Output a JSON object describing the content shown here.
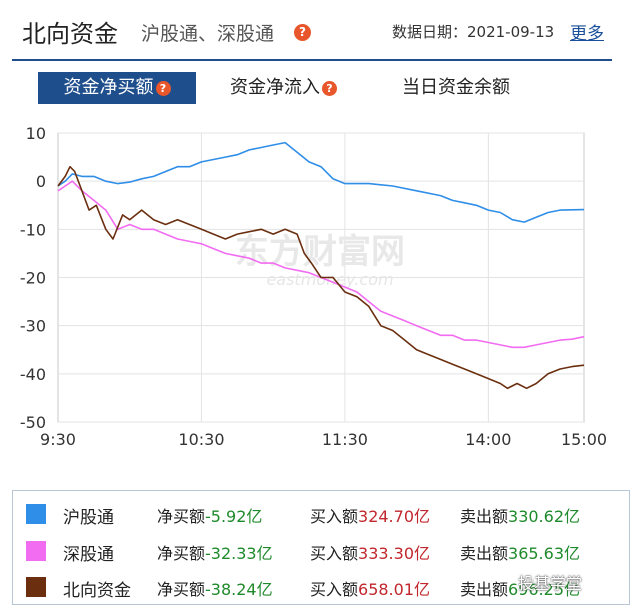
{
  "header": {
    "title": "北向资金",
    "subtitle": "沪股通、深股通",
    "date_label": "数据日期：2021-09-13",
    "more_link": "更多"
  },
  "tabs": [
    {
      "label": "资金净买额",
      "active": true
    },
    {
      "label": "资金净流入",
      "active": false
    },
    {
      "label": "当日资金余额",
      "active": false
    }
  ],
  "watermark": {
    "brand_cn": "东方财富网",
    "brand_en": "eastmoney.com",
    "corner": "投基学堂"
  },
  "legend": [
    {
      "name": "沪股通",
      "color": "#2f8ee8",
      "net_label": "净买额",
      "net_value": "-5.92亿",
      "buy_label": "买入额",
      "buy_value": "324.70亿",
      "sell_label": "卖出额",
      "sell_value": "330.62亿"
    },
    {
      "name": "深股通",
      "color": "#f26cf2",
      "net_label": "净买额",
      "net_value": "-32.33亿",
      "buy_label": "买入额",
      "buy_value": "333.30亿",
      "sell_label": "卖出额",
      "sell_value": "365.63亿"
    },
    {
      "name": "北向资金",
      "color": "#6b2f10",
      "net_label": "净买额",
      "net_value": "-38.24亿",
      "buy_label": "买入额",
      "buy_value": "658.01亿",
      "sell_label": "卖出额",
      "sell_value": "696.25亿"
    }
  ],
  "chart_data": {
    "type": "line",
    "ylim": [
      -50,
      10
    ],
    "yticks": [
      "10",
      "0",
      "-10",
      "-20",
      "-30",
      "-40",
      "-50"
    ],
    "xticks": [
      "9:30",
      "10:30",
      "11:30",
      "14:00",
      "15:00"
    ],
    "grid": true,
    "series": [
      {
        "name": "沪股通",
        "color": "#2f8ee8",
        "points": [
          [
            0,
            -1
          ],
          [
            3,
            0
          ],
          [
            6,
            1.5
          ],
          [
            10,
            1
          ],
          [
            15,
            1
          ],
          [
            20,
            0
          ],
          [
            25,
            -0.5
          ],
          [
            30,
            -0.2
          ],
          [
            35,
            0.5
          ],
          [
            40,
            1
          ],
          [
            45,
            2
          ],
          [
            50,
            3
          ],
          [
            55,
            3
          ],
          [
            60,
            4
          ],
          [
            65,
            4.5
          ],
          [
            70,
            5
          ],
          [
            75,
            5.5
          ],
          [
            80,
            6.5
          ],
          [
            85,
            7
          ],
          [
            90,
            7.5
          ],
          [
            95,
            8
          ],
          [
            100,
            6
          ],
          [
            105,
            4
          ],
          [
            110,
            3
          ],
          [
            115,
            0.5
          ],
          [
            120,
            -0.5
          ],
          [
            125,
            -0.5
          ],
          [
            130,
            -0.5
          ],
          [
            140,
            -1
          ],
          [
            150,
            -2
          ],
          [
            160,
            -3
          ],
          [
            165,
            -4
          ],
          [
            170,
            -4.5
          ],
          [
            175,
            -5
          ],
          [
            180,
            -6
          ],
          [
            185,
            -6.5
          ],
          [
            190,
            -8
          ],
          [
            195,
            -8.5
          ],
          [
            200,
            -7.5
          ],
          [
            205,
            -6.5
          ],
          [
            210,
            -6
          ],
          [
            220,
            -5.9
          ]
        ]
      },
      {
        "name": "深股通",
        "color": "#f26cf2",
        "points": [
          [
            0,
            -2
          ],
          [
            3,
            -1
          ],
          [
            6,
            0
          ],
          [
            10,
            -2
          ],
          [
            15,
            -4
          ],
          [
            20,
            -6
          ],
          [
            25,
            -10
          ],
          [
            30,
            -9
          ],
          [
            35,
            -10
          ],
          [
            40,
            -10
          ],
          [
            45,
            -11
          ],
          [
            50,
            -12
          ],
          [
            55,
            -12.5
          ],
          [
            60,
            -13
          ],
          [
            65,
            -14
          ],
          [
            70,
            -15
          ],
          [
            75,
            -15.5
          ],
          [
            80,
            -16
          ],
          [
            85,
            -17
          ],
          [
            90,
            -17
          ],
          [
            95,
            -18
          ],
          [
            100,
            -18.5
          ],
          [
            105,
            -19
          ],
          [
            110,
            -20
          ],
          [
            115,
            -21
          ],
          [
            120,
            -22
          ],
          [
            125,
            -23
          ],
          [
            130,
            -25
          ],
          [
            135,
            -27
          ],
          [
            140,
            -28
          ],
          [
            145,
            -29
          ],
          [
            150,
            -30
          ],
          [
            155,
            -31
          ],
          [
            160,
            -32
          ],
          [
            165,
            -32
          ],
          [
            170,
            -33
          ],
          [
            175,
            -33
          ],
          [
            180,
            -33.5
          ],
          [
            185,
            -34
          ],
          [
            190,
            -34.5
          ],
          [
            195,
            -34.5
          ],
          [
            200,
            -34
          ],
          [
            205,
            -33.5
          ],
          [
            210,
            -33
          ],
          [
            215,
            -32.8
          ],
          [
            220,
            -32.3
          ]
        ]
      },
      {
        "name": "北向资金",
        "color": "#6b2f10",
        "points": [
          [
            0,
            -1
          ],
          [
            3,
            1
          ],
          [
            5,
            3
          ],
          [
            7,
            2
          ],
          [
            10,
            -2
          ],
          [
            13,
            -6
          ],
          [
            16,
            -5
          ],
          [
            20,
            -10
          ],
          [
            23,
            -12
          ],
          [
            27,
            -7
          ],
          [
            30,
            -8
          ],
          [
            35,
            -6
          ],
          [
            40,
            -8
          ],
          [
            45,
            -9
          ],
          [
            50,
            -8
          ],
          [
            55,
            -9
          ],
          [
            60,
            -10
          ],
          [
            65,
            -11
          ],
          [
            70,
            -12
          ],
          [
            75,
            -11
          ],
          [
            80,
            -10.5
          ],
          [
            85,
            -10
          ],
          [
            90,
            -11
          ],
          [
            95,
            -10
          ],
          [
            100,
            -11
          ],
          [
            103,
            -15
          ],
          [
            106,
            -17
          ],
          [
            110,
            -20
          ],
          [
            115,
            -20
          ],
          [
            120,
            -23
          ],
          [
            125,
            -24
          ],
          [
            130,
            -26
          ],
          [
            135,
            -30
          ],
          [
            140,
            -31
          ],
          [
            145,
            -33
          ],
          [
            150,
            -35
          ],
          [
            155,
            -36
          ],
          [
            160,
            -37
          ],
          [
            165,
            -38
          ],
          [
            170,
            -39
          ],
          [
            175,
            -40
          ],
          [
            180,
            -41
          ],
          [
            185,
            -42
          ],
          [
            188,
            -43
          ],
          [
            192,
            -42
          ],
          [
            196,
            -43
          ],
          [
            200,
            -42
          ],
          [
            205,
            -40
          ],
          [
            210,
            -39
          ],
          [
            215,
            -38.5
          ],
          [
            220,
            -38.2
          ]
        ]
      }
    ]
  }
}
